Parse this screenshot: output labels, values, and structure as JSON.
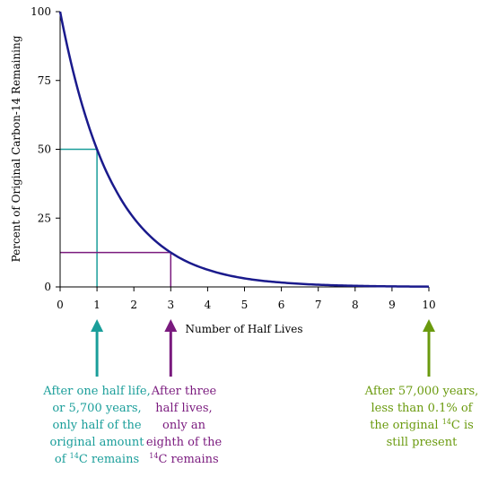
{
  "chart_data": {
    "type": "line",
    "title": "",
    "xlabel": "Number of Half Lives",
    "ylabel": "Percent of Original Carbon-14 Remaining",
    "xlim": [
      0,
      10
    ],
    "ylim": [
      0,
      100
    ],
    "x_ticks": [
      "0",
      "1",
      "2",
      "3",
      "4",
      "5",
      "6",
      "7",
      "8",
      "9",
      "10"
    ],
    "y_ticks": [
      "0",
      "25",
      "50",
      "75",
      "100"
    ],
    "grid": false,
    "legend": "none",
    "series": [
      {
        "color": "#1a1a8c",
        "x": [
          0,
          0.25,
          0.5,
          0.75,
          1,
          1.25,
          1.5,
          1.75,
          2,
          2.5,
          3,
          3.5,
          4,
          4.5,
          5,
          5.5,
          6,
          7,
          8,
          9,
          10
        ],
        "y": [
          100,
          84.1,
          70.7,
          59.5,
          50,
          42.0,
          35.4,
          29.7,
          25,
          17.7,
          12.5,
          8.8,
          6.25,
          4.4,
          3.1,
          2.2,
          1.6,
          0.8,
          0.4,
          0.2,
          0.1
        ]
      }
    ],
    "guides": [
      {
        "x": 1,
        "y": 50,
        "color": "#1a9e9a"
      },
      {
        "x": 3,
        "y": 12.5,
        "color": "#7a1a7e"
      }
    ],
    "arrows": [
      {
        "x": 1,
        "color": "#1a9e9a"
      },
      {
        "x": 3,
        "color": "#7a1a7e"
      },
      {
        "x": 10,
        "color": "#6a9a0e"
      }
    ]
  },
  "annotations": {
    "one_half_life": {
      "line1": "After one half life,",
      "line2": "or 5,700 years,",
      "line3": "only half of the",
      "line4": "original amount",
      "line5_pre": "of ",
      "sup": "14",
      "line5_post": "C remains"
    },
    "three_half_lives": {
      "line1": "After three",
      "line2": "half lives,",
      "line3": "only an",
      "line4": "eighth of the",
      "sup": "14",
      "line5_post": "C remains"
    },
    "present": {
      "line1": "After 57,000 years,",
      "line2": "less than 0.1% of",
      "line3_pre": "the original ",
      "sup": "14",
      "line3_post": "C is",
      "line4": "still present"
    }
  }
}
